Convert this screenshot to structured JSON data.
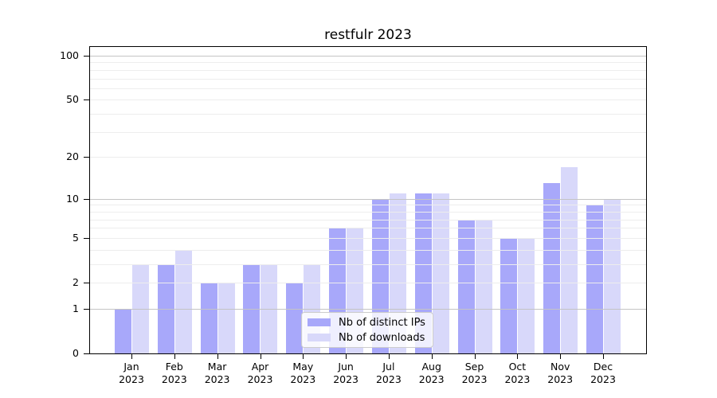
{
  "chart_data": {
    "type": "bar",
    "title": "restfulr 2023",
    "categories": [
      "Jan",
      "Feb",
      "Mar",
      "Apr",
      "May",
      "Jun",
      "Jul",
      "Aug",
      "Sep",
      "Oct",
      "Nov",
      "Dec"
    ],
    "year_label": "2023",
    "series": [
      {
        "name": "Nb of distinct IPs",
        "color": "#a8a8fa",
        "values": [
          1,
          3,
          2,
          3,
          2,
          6,
          10,
          11,
          7,
          5,
          13,
          9
        ]
      },
      {
        "name": "Nb of downloads",
        "color": "#d8d8fa",
        "values": [
          3,
          4,
          2,
          3,
          3,
          6,
          11,
          11,
          7,
          5,
          17,
          10
        ]
      }
    ],
    "yscale": "log1p",
    "ylim": [
      0,
      110
    ],
    "yticks": [
      0,
      1,
      2,
      5,
      10,
      20,
      50,
      100
    ],
    "major_gridlines": [
      1,
      10,
      100
    ],
    "minor_gridlines": [
      2,
      3,
      4,
      5,
      6,
      7,
      8,
      9,
      20,
      30,
      40,
      50,
      60,
      70,
      80,
      90
    ],
    "grid": "on",
    "legend_position": "bottom-center",
    "colors": {
      "axis": "#000000",
      "text": "#000000",
      "major_grid": "#c4c4c4",
      "minor_grid": "#ededed",
      "legend_border": "#cccccc",
      "background": "#ffffff"
    }
  }
}
